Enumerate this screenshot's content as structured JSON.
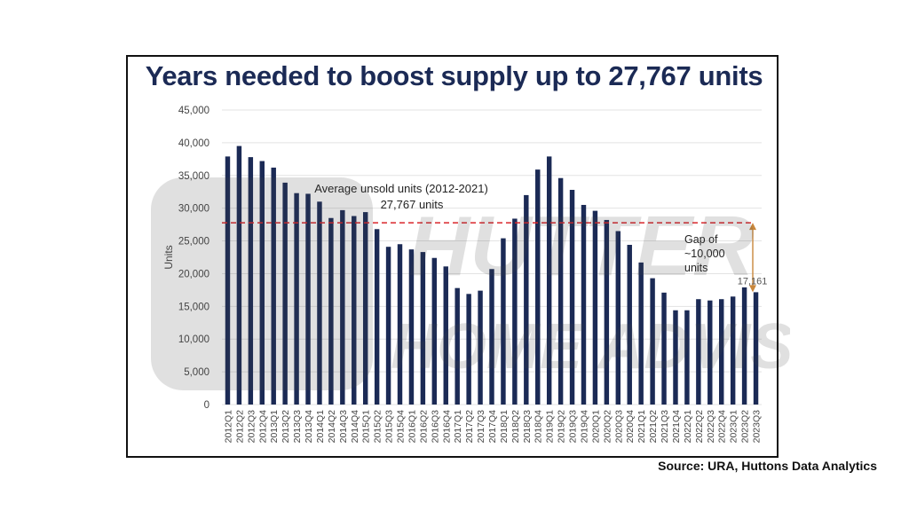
{
  "title": "Years needed to boost supply up to 27,767 units",
  "source": "Source: URA, Huttons Data Analytics",
  "watermark": {
    "line1": "HUTTER",
    "line2": "HOME ADVISORY"
  },
  "chart_data": {
    "type": "bar",
    "ylabel": "Units",
    "xlabel": "",
    "ylim": [
      0,
      45000
    ],
    "yticks": [
      0,
      5000,
      10000,
      15000,
      20000,
      25000,
      30000,
      35000,
      40000,
      45000
    ],
    "ytick_labels": [
      "0",
      "5,000",
      "10,000",
      "15,000",
      "20,000",
      "25,000",
      "30,000",
      "35,000",
      "40,000",
      "45,000"
    ],
    "grid": true,
    "bar_color": "#1b2a55",
    "categories": [
      "2012Q1",
      "2012Q2",
      "2012Q3",
      "2012Q4",
      "2013Q1",
      "2013Q2",
      "2013Q3",
      "2013Q4",
      "2014Q1",
      "2014Q2",
      "2014Q3",
      "2014Q4",
      "2015Q1",
      "2015Q2",
      "2015Q3",
      "2015Q4",
      "2016Q1",
      "2016Q2",
      "2016Q3",
      "2016Q4",
      "2017Q1",
      "2017Q2",
      "2017Q3",
      "2017Q4",
      "2018Q1",
      "2018Q2",
      "2018Q3",
      "2018Q4",
      "2019Q1",
      "2019Q2",
      "2019Q3",
      "2019Q4",
      "2020Q1",
      "2020Q2",
      "2020Q3",
      "2020Q4",
      "2021Q1",
      "2021Q2",
      "2021Q3",
      "2021Q4",
      "2022Q1",
      "2022Q2",
      "2022Q3",
      "2022Q4",
      "2023Q1",
      "2023Q2",
      "2023Q3"
    ],
    "values": [
      37900,
      39500,
      37800,
      37200,
      36200,
      33900,
      32300,
      32200,
      31000,
      28500,
      29700,
      28800,
      29400,
      26800,
      24100,
      24500,
      23700,
      23300,
      22400,
      21100,
      17800,
      16900,
      17400,
      20700,
      25400,
      28400,
      32000,
      35900,
      37900,
      34600,
      32800,
      30500,
      29600,
      28200,
      26500,
      24400,
      21700,
      19300,
      17100,
      14400,
      14400,
      16100,
      15900,
      16100,
      16500,
      17900,
      17161
    ],
    "reference_line": {
      "value": 27767,
      "color": "#d9262b",
      "label_line1": "Average unsold units (2012-2021)",
      "label_line2": "27,767 units"
    },
    "gap_annotation": {
      "from": 17161,
      "to": 27767,
      "color": "#c9873c",
      "label_line1": "Gap of",
      "label_line2": "~10,000",
      "label_line3": "units"
    },
    "data_label": {
      "category": "2023Q3",
      "text": "17,161"
    }
  }
}
